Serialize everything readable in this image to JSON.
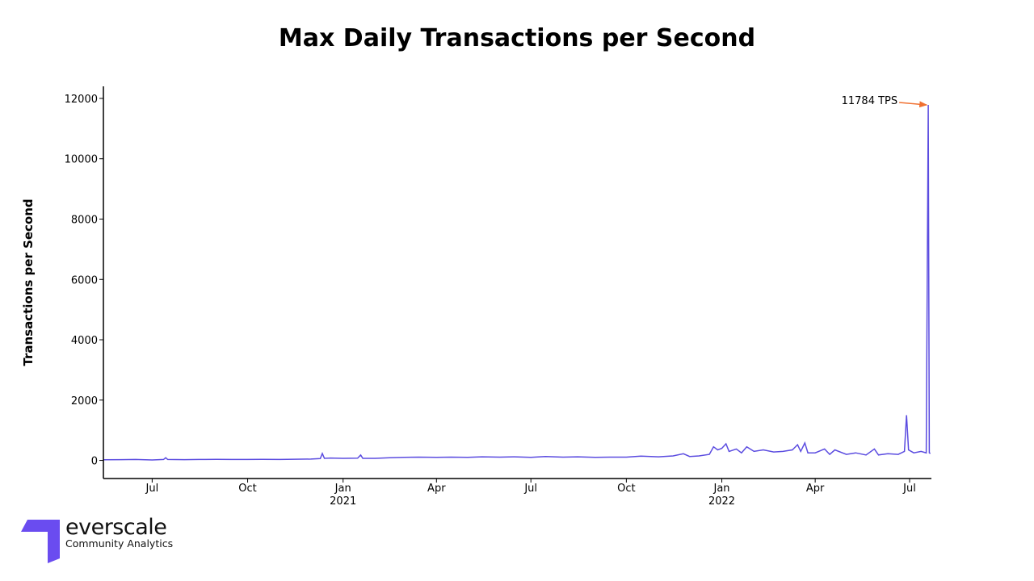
{
  "chart_data": {
    "type": "line",
    "title": "Max Daily Transactions per Second",
    "xlabel": "",
    "ylabel": "Transactions per Second",
    "xlim": [
      "2020-05-15",
      "2022-07-22"
    ],
    "ylim": [
      -600,
      12400
    ],
    "grid": false,
    "y_ticks": [
      0,
      2000,
      4000,
      6000,
      8000,
      10000,
      12000
    ],
    "x_ticks": [
      {
        "date": "2020-07-01",
        "label": "Jul",
        "year": ""
      },
      {
        "date": "2020-10-01",
        "label": "Oct",
        "year": ""
      },
      {
        "date": "2021-01-01",
        "label": "Jan",
        "year": "2021"
      },
      {
        "date": "2021-04-01",
        "label": "Apr",
        "year": ""
      },
      {
        "date": "2021-07-01",
        "label": "Jul",
        "year": ""
      },
      {
        "date": "2021-10-01",
        "label": "Oct",
        "year": ""
      },
      {
        "date": "2022-01-01",
        "label": "Jan",
        "year": "2022"
      },
      {
        "date": "2022-04-01",
        "label": "Apr",
        "year": ""
      },
      {
        "date": "2022-07-01",
        "label": "Jul",
        "year": ""
      }
    ],
    "series": [
      {
        "color": "#5b4ce0",
        "points": [
          [
            "2020-05-15",
            20
          ],
          [
            "2020-06-01",
            25
          ],
          [
            "2020-06-15",
            30
          ],
          [
            "2020-07-01",
            15
          ],
          [
            "2020-07-12",
            30
          ],
          [
            "2020-07-14",
            90
          ],
          [
            "2020-07-16",
            30
          ],
          [
            "2020-08-01",
            25
          ],
          [
            "2020-08-15",
            30
          ],
          [
            "2020-09-01",
            35
          ],
          [
            "2020-09-15",
            30
          ],
          [
            "2020-10-01",
            30
          ],
          [
            "2020-10-15",
            35
          ],
          [
            "2020-11-01",
            30
          ],
          [
            "2020-11-15",
            40
          ],
          [
            "2020-12-01",
            45
          ],
          [
            "2020-12-10",
            60
          ],
          [
            "2020-12-12",
            230
          ],
          [
            "2020-12-14",
            70
          ],
          [
            "2020-12-20",
            80
          ],
          [
            "2021-01-01",
            70
          ],
          [
            "2021-01-15",
            75
          ],
          [
            "2021-01-18",
            180
          ],
          [
            "2021-01-20",
            70
          ],
          [
            "2021-02-01",
            70
          ],
          [
            "2021-02-15",
            90
          ],
          [
            "2021-03-01",
            100
          ],
          [
            "2021-03-15",
            110
          ],
          [
            "2021-04-01",
            100
          ],
          [
            "2021-04-15",
            110
          ],
          [
            "2021-05-01",
            100
          ],
          [
            "2021-05-15",
            120
          ],
          [
            "2021-06-01",
            110
          ],
          [
            "2021-06-15",
            120
          ],
          [
            "2021-07-01",
            100
          ],
          [
            "2021-07-15",
            130
          ],
          [
            "2021-08-01",
            110
          ],
          [
            "2021-08-15",
            120
          ],
          [
            "2021-09-01",
            100
          ],
          [
            "2021-09-15",
            110
          ],
          [
            "2021-10-01",
            110
          ],
          [
            "2021-10-15",
            140
          ],
          [
            "2021-11-01",
            120
          ],
          [
            "2021-11-15",
            150
          ],
          [
            "2021-11-25",
            220
          ],
          [
            "2021-12-01",
            130
          ],
          [
            "2021-12-10",
            150
          ],
          [
            "2021-12-20",
            200
          ],
          [
            "2021-12-24",
            450
          ],
          [
            "2021-12-28",
            350
          ],
          [
            "2022-01-01",
            400
          ],
          [
            "2022-01-05",
            550
          ],
          [
            "2022-01-08",
            300
          ],
          [
            "2022-01-15",
            380
          ],
          [
            "2022-01-20",
            250
          ],
          [
            "2022-01-25",
            450
          ],
          [
            "2022-02-01",
            300
          ],
          [
            "2022-02-10",
            350
          ],
          [
            "2022-02-20",
            280
          ],
          [
            "2022-03-01",
            300
          ],
          [
            "2022-03-10",
            350
          ],
          [
            "2022-03-15",
            520
          ],
          [
            "2022-03-18",
            300
          ],
          [
            "2022-03-22",
            580
          ],
          [
            "2022-03-25",
            250
          ],
          [
            "2022-04-01",
            250
          ],
          [
            "2022-04-10",
            380
          ],
          [
            "2022-04-15",
            200
          ],
          [
            "2022-04-20",
            350
          ],
          [
            "2022-05-01",
            200
          ],
          [
            "2022-05-10",
            250
          ],
          [
            "2022-05-20",
            180
          ],
          [
            "2022-05-28",
            380
          ],
          [
            "2022-06-01",
            180
          ],
          [
            "2022-06-10",
            220
          ],
          [
            "2022-06-20",
            200
          ],
          [
            "2022-06-26",
            300
          ],
          [
            "2022-06-28",
            1500
          ],
          [
            "2022-06-30",
            350
          ],
          [
            "2022-07-05",
            250
          ],
          [
            "2022-07-12",
            300
          ],
          [
            "2022-07-17",
            250
          ],
          [
            "2022-07-19",
            11784
          ],
          [
            "2022-07-20",
            250
          ],
          [
            "2022-07-21",
            230
          ]
        ]
      }
    ],
    "annotations": [
      {
        "text": "11784 TPS",
        "x": "2022-07-19",
        "y": 11784,
        "arrow_color": "#f07030"
      }
    ]
  },
  "logo": {
    "name": "everscale",
    "tagline": "Community Analytics",
    "color": "#6a4cf0"
  }
}
